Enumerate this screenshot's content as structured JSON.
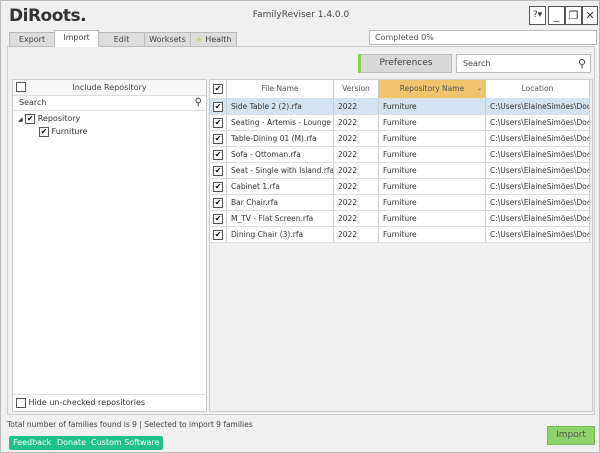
{
  "app": {
    "logo": "DiRoots.",
    "title": "FamilyReviser 1.4.0.0",
    "help": "?▾",
    "minimize": "_",
    "restore": "❐",
    "close": "✕"
  },
  "tabs": [
    {
      "label": "Export"
    },
    {
      "label": "Import",
      "active": true
    },
    {
      "label": "Edit"
    },
    {
      "label": "Worksets"
    },
    {
      "label": "Health",
      "icon": "star-icon"
    }
  ],
  "progress": {
    "text": "Completed 0%",
    "value": 0
  },
  "toolbar": {
    "preferences": "Preferences",
    "search_placeholder": "Search"
  },
  "repo_panel": {
    "header": "Include Repository",
    "search_placeholder": "Search",
    "tree": [
      {
        "label": "Repository",
        "checked": true,
        "children": [
          {
            "label": "Furniture",
            "checked": true
          }
        ]
      }
    ],
    "hide_unchecked": "Hide un-checked repositories"
  },
  "grid": {
    "columns": [
      "File Name",
      "Version",
      "Repository Name",
      "Location"
    ],
    "sorted_column": "Repository Name",
    "sort_color": "#f0c36d",
    "rows": [
      [
        "Side Table 2 (2).rfa",
        "2022",
        "Furniture",
        "C:\\Users\\ElaineSimões\\Docu"
      ],
      [
        "Seating - Artemis - Lounge ch",
        "2022",
        "Furniture",
        "C:\\Users\\ElaineSimões\\Docu"
      ],
      [
        "Table-Dining 01 (M).rfa",
        "2022",
        "Furniture",
        "C:\\Users\\ElaineSimões\\Docu"
      ],
      [
        "Sofa - Ottoman.rfa",
        "2022",
        "Furniture",
        "C:\\Users\\ElaineSimões\\Docu"
      ],
      [
        "Seat - Single with Island.rfa",
        "2022",
        "Furniture",
        "C:\\Users\\ElaineSimões\\Docu"
      ],
      [
        "Cabinet 1.rfa",
        "2022",
        "Furniture",
        "C:\\Users\\ElaineSimões\\Docu"
      ],
      [
        "Bar Chair.rfa",
        "2022",
        "Furniture",
        "C:\\Users\\ElaineSimões\\Docu"
      ],
      [
        "M_TV - Flat Screen.rfa",
        "2022",
        "Furniture",
        "C:\\Users\\ElaineSimões\\Docu"
      ],
      [
        "Dining Chair (3).rfa",
        "2022",
        "Furniture",
        "C:\\Users\\ElaineSimões\\Docu"
      ]
    ]
  },
  "status": "Total number of families found is 9 | Selected to import 9 families",
  "footer": {
    "feedback": "Feedback",
    "donate": "Donate",
    "custom": "Custom Software",
    "import": "Import"
  }
}
